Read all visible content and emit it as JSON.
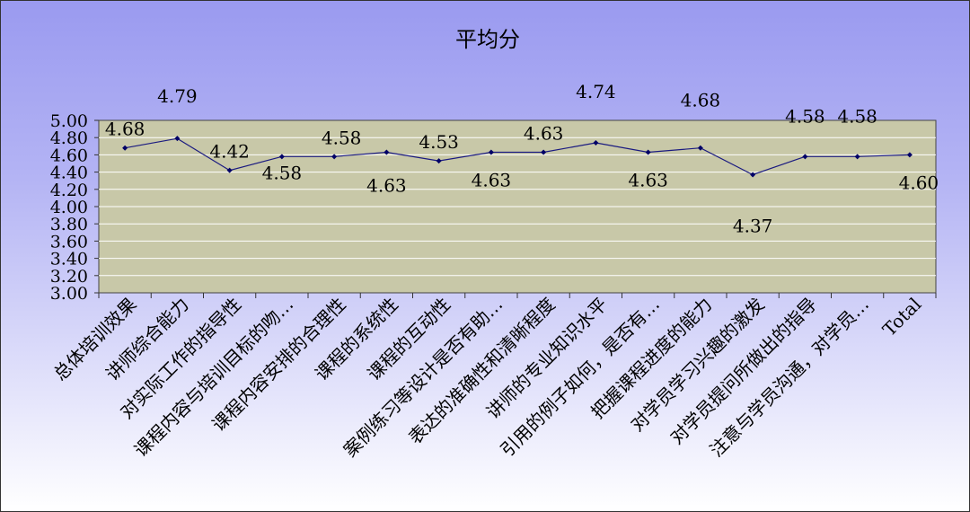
{
  "chart_data": {
    "type": "line",
    "title": "平均分",
    "categories": [
      "总体培训效果",
      "讲师综合能力",
      "对实际工作的指导性",
      "课程内容与培训目标的吻…",
      "课程内容安排的合理性",
      "课程的系统性",
      "课程的互动性",
      "案例练习等设计是否有助…",
      "表达的准确性和清晰程度",
      "讲师的专业知识水平",
      "引用的例子如何，是否有…",
      "把握课程进度的能力",
      "对学员学习兴趣的激发",
      "对学员提问所做出的指导",
      "注意与学员沟通，对学员…",
      "Total"
    ],
    "values": [
      4.68,
      4.79,
      4.42,
      4.58,
      4.58,
      4.63,
      4.53,
      4.63,
      4.63,
      4.74,
      4.63,
      4.68,
      4.37,
      4.58,
      4.58,
      4.6
    ],
    "value_labels": [
      "4.68",
      "4.79",
      "4.42",
      "4.58",
      "4.58",
      "4.63",
      "4.53",
      "4.63",
      "4.63",
      "4.74",
      "4.63",
      "4.68",
      "4.37",
      "4.58",
      "4.58",
      "4.60"
    ],
    "y_ticks": [
      "3.00",
      "3.20",
      "3.40",
      "3.60",
      "3.80",
      "4.00",
      "4.20",
      "4.40",
      "4.60",
      "4.80",
      "5.00"
    ],
    "ylim": [
      3.0,
      5.0
    ],
    "grid": true,
    "legend": "none",
    "colors": {
      "plot_background": "#c8c8a8",
      "gridline": "#ffffff",
      "series_line": "#1a1a80",
      "marker": "#000066"
    }
  }
}
